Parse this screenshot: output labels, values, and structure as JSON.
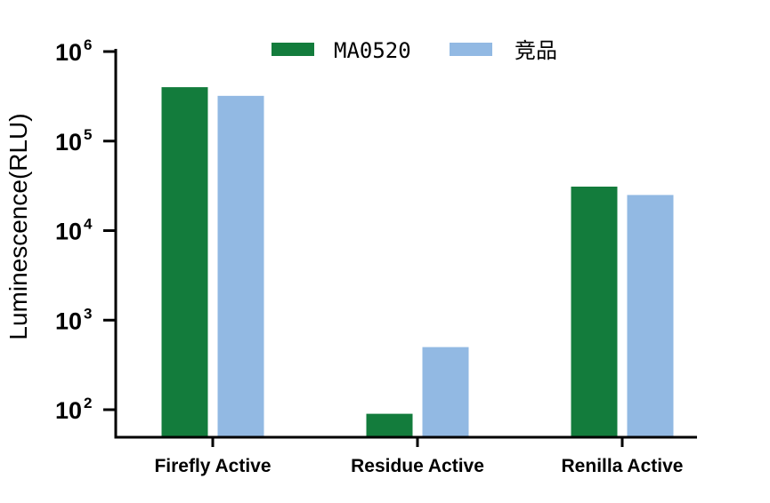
{
  "chart_data": {
    "type": "bar",
    "scale": "log",
    "ylabel": "Luminescence(RLU)",
    "ylim": [
      50,
      1000000
    ],
    "y_ticks": [
      {
        "base": "10",
        "exp": "2",
        "value": 100
      },
      {
        "base": "10",
        "exp": "3",
        "value": 1000
      },
      {
        "base": "10",
        "exp": "4",
        "value": 10000
      },
      {
        "base": "10",
        "exp": "5",
        "value": 100000
      },
      {
        "base": "10",
        "exp": "6",
        "value": 1000000
      }
    ],
    "categories": [
      "Firefly Active",
      "Residue Active",
      "Renilla Active"
    ],
    "series": [
      {
        "name": "MA0520",
        "color": "#137c3c",
        "values": [
          400000,
          90,
          31000
        ]
      },
      {
        "name": "竞品",
        "color": "#92b9e3",
        "values": [
          320000,
          500,
          25000
        ]
      }
    ],
    "legend_position": "top",
    "grid": false
  }
}
